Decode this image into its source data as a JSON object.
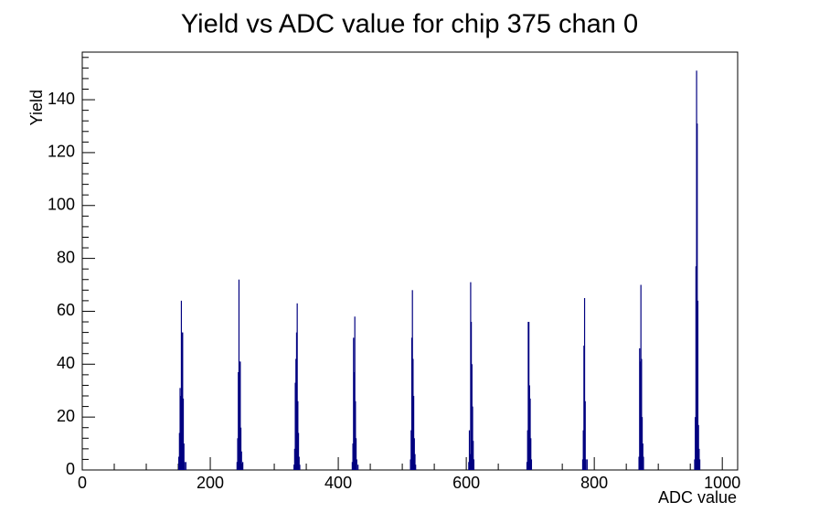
{
  "chart_data": {
    "type": "histogram",
    "title": "Yield vs ADC value for chip 375 chan 0",
    "xlabel": "ADC value",
    "ylabel": "Yield",
    "xlim": [
      0,
      1024
    ],
    "ylim": [
      0,
      158
    ],
    "x_ticks": [
      0,
      200,
      400,
      600,
      800,
      1000
    ],
    "y_ticks": [
      0,
      20,
      40,
      60,
      80,
      100,
      120,
      140
    ],
    "grid": false,
    "legend": "none",
    "line_color": "#000080",
    "peaks": [
      {
        "center": 155,
        "bins": [
          [
            150,
            5
          ],
          [
            151,
            14
          ],
          [
            152,
            31
          ],
          [
            153,
            28
          ],
          [
            154,
            64
          ],
          [
            155,
            52
          ],
          [
            156,
            52
          ],
          [
            157,
            27
          ],
          [
            158,
            10
          ],
          [
            159,
            3
          ],
          [
            161,
            3
          ]
        ]
      },
      {
        "center": 246,
        "bins": [
          [
            241,
            3
          ],
          [
            242,
            12
          ],
          [
            243,
            37
          ],
          [
            244,
            72
          ],
          [
            245,
            41
          ],
          [
            246,
            41
          ],
          [
            247,
            16
          ],
          [
            248,
            7
          ],
          [
            250,
            3
          ]
        ]
      },
      {
        "center": 335,
        "bins": [
          [
            330,
            2
          ],
          [
            331,
            8
          ],
          [
            332,
            33
          ],
          [
            333,
            42
          ],
          [
            334,
            52
          ],
          [
            335,
            63
          ],
          [
            336,
            26
          ],
          [
            337,
            14
          ],
          [
            338,
            5
          ],
          [
            339,
            2
          ]
        ]
      },
      {
        "center": 426,
        "bins": [
          [
            421,
            3
          ],
          [
            422,
            10
          ],
          [
            423,
            50
          ],
          [
            424,
            37
          ],
          [
            425,
            58
          ],
          [
            426,
            26
          ],
          [
            427,
            12
          ],
          [
            428,
            4
          ],
          [
            430,
            2
          ]
        ]
      },
      {
        "center": 517,
        "bins": [
          [
            512,
            4
          ],
          [
            513,
            15
          ],
          [
            514,
            50
          ],
          [
            515,
            68
          ],
          [
            516,
            42
          ],
          [
            517,
            28
          ],
          [
            518,
            12
          ],
          [
            519,
            6
          ],
          [
            520,
            2
          ]
        ]
      },
      {
        "center": 608,
        "bins": [
          [
            603,
            3
          ],
          [
            604,
            15
          ],
          [
            605,
            6
          ],
          [
            606,
            71
          ],
          [
            607,
            56
          ],
          [
            608,
            40
          ],
          [
            609,
            24
          ],
          [
            610,
            11
          ],
          [
            611,
            4
          ]
        ]
      },
      {
        "center": 699,
        "bins": [
          [
            694,
            3
          ],
          [
            695,
            15
          ],
          [
            696,
            56
          ],
          [
            697,
            56
          ],
          [
            698,
            32
          ],
          [
            699,
            27
          ],
          [
            700,
            12
          ],
          [
            701,
            4
          ]
        ]
      },
      {
        "center": 786,
        "bins": [
          [
            781,
            4
          ],
          [
            782,
            15
          ],
          [
            783,
            47
          ],
          [
            784,
            65
          ],
          [
            785,
            26
          ],
          [
            786,
            4
          ],
          [
            788,
            4
          ]
        ]
      },
      {
        "center": 874,
        "bins": [
          [
            869,
            5
          ],
          [
            870,
            46
          ],
          [
            871,
            41
          ],
          [
            872,
            70
          ],
          [
            873,
            42
          ],
          [
            874,
            20
          ],
          [
            875,
            10
          ],
          [
            876,
            5
          ]
        ]
      },
      {
        "center": 962,
        "bins": [
          [
            956,
            4
          ],
          [
            957,
            20
          ],
          [
            958,
            77
          ],
          [
            959,
            151
          ],
          [
            960,
            131
          ],
          [
            961,
            64
          ],
          [
            962,
            17
          ],
          [
            963,
            8
          ],
          [
            964,
            4
          ]
        ]
      }
    ]
  }
}
